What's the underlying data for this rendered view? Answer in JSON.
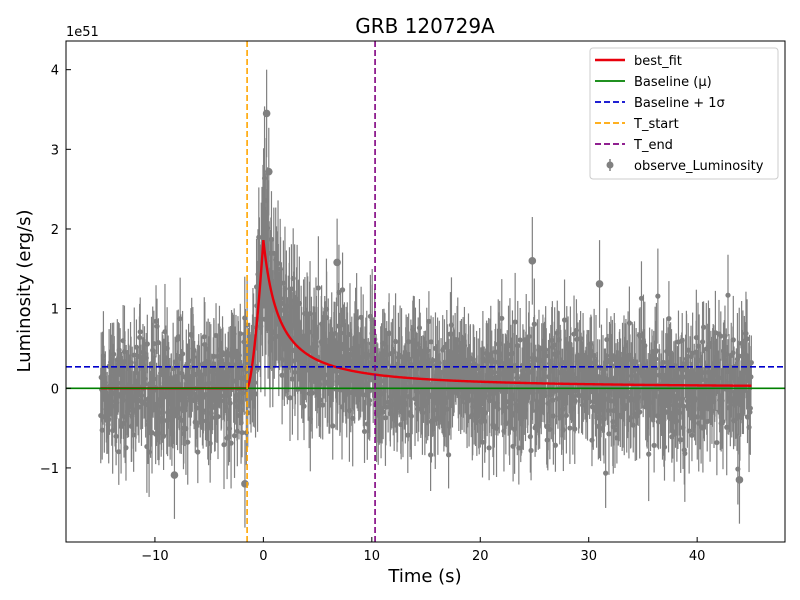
{
  "chart_data": {
    "type": "scatter",
    "title": "GRB 120729A",
    "xlabel": "Time (s)",
    "ylabel": "Luminosity (erg/s)",
    "y_offset_label": "1e51",
    "xlim": [
      -18.2,
      48.1
    ],
    "ylim": [
      -1.93,
      4.36
    ],
    "xticks": [
      -10,
      0,
      10,
      20,
      30,
      40
    ],
    "yticks": [
      -1,
      0,
      1,
      2,
      3,
      4
    ],
    "xtick_labels": [
      "−10",
      "0",
      "10",
      "20",
      "30",
      "40"
    ],
    "ytick_labels": [
      "−1",
      "0",
      "1",
      "2",
      "3",
      "4"
    ],
    "legend_position": "top-right",
    "baseline": 0.0,
    "baseline_plus_sigma": 0.27,
    "t_start": -1.5,
    "t_end": 10.3,
    "fit_peak_time": 0.0,
    "fit_peak_value": 1.86,
    "observations_note": "noisy luminosity points with error bars, t from -15 to 45 s",
    "highlight_points": [
      {
        "t": 0.3,
        "y": 3.45
      },
      {
        "t": 0.5,
        "y": 2.72
      },
      {
        "t": 24.8,
        "y": 1.6
      },
      {
        "t": 31.0,
        "y": 1.31
      },
      {
        "t": 6.8,
        "y": 1.58
      },
      {
        "t": -8.2,
        "y": -1.09
      },
      {
        "t": -1.7,
        "y": -1.2
      },
      {
        "t": 43.9,
        "y": -1.15
      }
    ],
    "legend": [
      {
        "label": "best_fit",
        "color": "#e8000b",
        "style": "solid"
      },
      {
        "label": "Baseline (μ)",
        "color": "#008000",
        "style": "solid"
      },
      {
        "label": "Baseline + 1σ",
        "color": "#0000cc",
        "style": "dashed"
      },
      {
        "label": "T_start",
        "color": "#ffa500",
        "style": "dashed"
      },
      {
        "label": "T_end",
        "color": "#800080",
        "style": "dashed"
      },
      {
        "label": "observe_Luminosity",
        "color": "#808080",
        "style": "marker"
      }
    ]
  }
}
